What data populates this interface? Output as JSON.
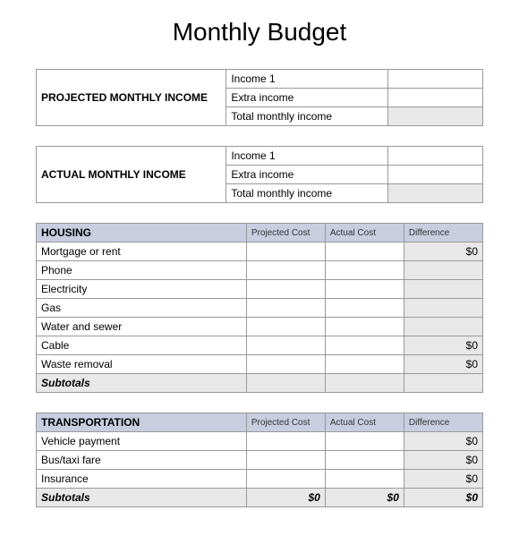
{
  "title": "Monthly Budget",
  "projected_income": {
    "label": "PROJECTED MONTHLY INCOME",
    "rows": [
      {
        "label": "Income 1",
        "value": ""
      },
      {
        "label": "Extra income",
        "value": ""
      },
      {
        "label": "Total monthly income",
        "value": "",
        "shaded": true
      }
    ]
  },
  "actual_income": {
    "label": "ACTUAL MONTHLY INCOME",
    "rows": [
      {
        "label": "Income 1",
        "value": ""
      },
      {
        "label": "Extra income",
        "value": ""
      },
      {
        "label": "Total monthly income",
        "value": "",
        "shaded": true
      }
    ]
  },
  "col_headers": {
    "projected": "Projected Cost",
    "actual": "Actual Cost",
    "difference": "Difference"
  },
  "housing": {
    "name": "HOUSING",
    "rows": [
      {
        "item": "Mortgage or rent",
        "proj": "",
        "act": "",
        "diff": "$0"
      },
      {
        "item": "Phone",
        "proj": "",
        "act": "",
        "diff": ""
      },
      {
        "item": "Electricity",
        "proj": "",
        "act": "",
        "diff": ""
      },
      {
        "item": "Gas",
        "proj": "",
        "act": "",
        "diff": ""
      },
      {
        "item": "Water and sewer",
        "proj": "",
        "act": "",
        "diff": ""
      },
      {
        "item": "Cable",
        "proj": "",
        "act": "",
        "diff": "$0"
      },
      {
        "item": "Waste removal",
        "proj": "",
        "act": "",
        "diff": "$0"
      }
    ],
    "subtotal": {
      "label": "Subtotals",
      "proj": "",
      "act": "",
      "diff": ""
    }
  },
  "transportation": {
    "name": "TRANSPORTATION",
    "rows": [
      {
        "item": "Vehicle payment",
        "proj": "",
        "act": "",
        "diff": "$0"
      },
      {
        "item": "Bus/taxi fare",
        "proj": "",
        "act": "",
        "diff": "$0"
      },
      {
        "item": "Insurance",
        "proj": "",
        "act": "",
        "diff": "$0"
      }
    ],
    "subtotal": {
      "label": "Subtotals",
      "proj": "$0",
      "act": "$0",
      "diff": "$0"
    }
  }
}
